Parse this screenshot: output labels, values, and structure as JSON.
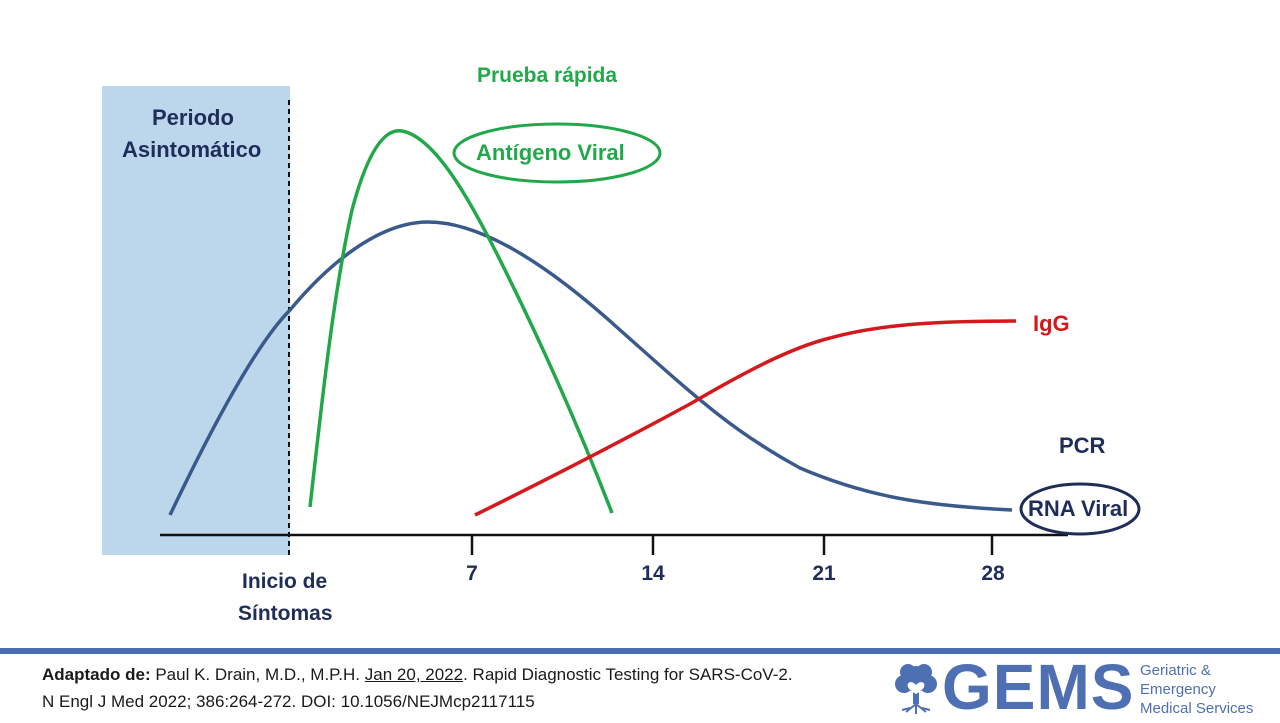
{
  "title": "Prueba rápida",
  "asymptomatic_label_1": "Periodo",
  "asymptomatic_label_2": "Asintomático",
  "onset_label_1": "Inicio de",
  "onset_label_2": "Síntomas",
  "antigen_label": "Antígeno Viral",
  "igg_label": "IgG",
  "pcr_label": "PCR",
  "rna_label": "RNA Viral",
  "colors": {
    "navy": "#1f2d5a",
    "antigen": "#22a84a",
    "igg": "#d3191c",
    "rna": "#3b5a8c",
    "shade": "#bcd6eb",
    "footer": "#4a6db1"
  },
  "citation": {
    "prefix": "Adaptado de:",
    "authors": "Paul K. Drain, M.D., M.P.H.",
    "date": "Jan 20, 2022",
    "title": ". Rapid Diagnostic Testing for SARS-CoV-2.",
    "journal": "N Engl J Med 2022; 386:264-272. DOI: 10.1056/NEJMcp2117115"
  },
  "logo": {
    "name": "GEMS",
    "sub_1": "Geriatric &",
    "sub_2": "Emergency",
    "sub_3": "Medical Services"
  },
  "chart_data": {
    "type": "line",
    "x_ticks": [
      7,
      14,
      21,
      28
    ],
    "x_unit": "days",
    "y_axis": "none (qualitative level)",
    "shaded_region": "asymptomatic period before symptom onset (day 0)",
    "series": [
      {
        "name": "RNA Viral",
        "x": [
          -5,
          -2,
          0,
          2,
          6,
          10,
          14,
          18,
          21,
          25,
          28
        ],
        "y": [
          0.05,
          0.45,
          0.72,
          0.9,
          0.97,
          0.85,
          0.6,
          0.35,
          0.2,
          0.1,
          0.07
        ]
      },
      {
        "name": "Antígeno Viral",
        "x": [
          1,
          2,
          3,
          4.5,
          6,
          8,
          10,
          12
        ],
        "y": [
          0.1,
          0.65,
          0.98,
          1.26,
          1.12,
          0.72,
          0.35,
          0.05
        ]
      },
      {
        "name": "IgG",
        "x": [
          7,
          10,
          14,
          18,
          21,
          25,
          28
        ],
        "y": [
          0.05,
          0.22,
          0.42,
          0.65,
          0.8,
          0.88,
          0.9
        ]
      }
    ]
  }
}
